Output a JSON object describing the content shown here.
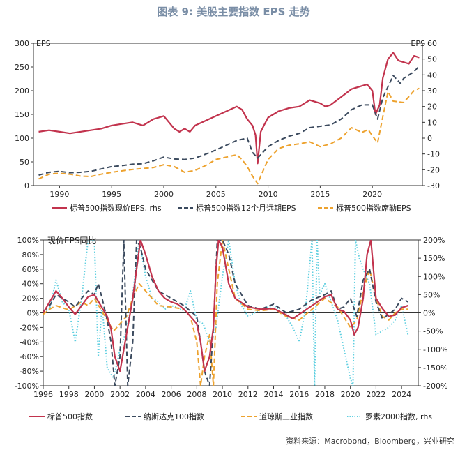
{
  "figure": {
    "title": "图表 9:  美股主要指数 EPS 走势",
    "source": "资料来源：Macrobond，Bloomberg，兴业研究"
  },
  "colors": {
    "sp_red": "#c2334d",
    "dark_blue": "#3b4a5e",
    "orange": "#eda22e",
    "cyan": "#5fcfe0",
    "title": "#7a8ea6"
  },
  "chart_data": [
    {
      "type": "line",
      "ylabel_left": "EPS",
      "ylabel_right": "EPS",
      "ylim_left": [
        0,
        300
      ],
      "ylim_right": [
        -30,
        60
      ],
      "yticks_left": [
        "0",
        "50",
        "100",
        "150",
        "200",
        "250",
        "300"
      ],
      "yticks_right": [
        "-30",
        "-20",
        "-10",
        "0",
        "10",
        "20",
        "30",
        "40",
        "50",
        "60"
      ],
      "xlim": [
        1987.5,
        2024.8
      ],
      "xticks": [
        "1990",
        "1995",
        "2000",
        "2005",
        "2010",
        "2015",
        "2020"
      ],
      "legend_position": "bottom",
      "series": [
        {
          "name": "标普500指数现价EPS, rhs",
          "axis": "right",
          "color": "#c2334d",
          "style": "solid",
          "x": [
            1988,
            1989,
            1990,
            1991,
            1992,
            1993,
            1994,
            1995,
            1996,
            1997,
            1998,
            1999,
            2000,
            2001,
            2001.5,
            2002,
            2002.5,
            2003,
            2004,
            2005,
            2006,
            2007,
            2007.5,
            2008,
            2008.5,
            2008.8,
            2009,
            2009.3,
            2009.6,
            2010,
            2011,
            2012,
            2013,
            2014,
            2015,
            2015.5,
            2016,
            2017,
            2018,
            2019,
            2019.5,
            2020,
            2020.3,
            2020.7,
            2021,
            2021.5,
            2022,
            2022.5,
            2023,
            2023.5,
            2024,
            2024.5
          ],
          "values": [
            4,
            5,
            4,
            3,
            4,
            5,
            6,
            8,
            9,
            10,
            8,
            12,
            14,
            6,
            4,
            6,
            4,
            8,
            11,
            14,
            17,
            20,
            18,
            12,
            8,
            2,
            -16,
            4,
            8,
            13,
            17,
            19,
            20,
            24,
            22,
            20,
            21,
            26,
            31,
            33,
            34,
            30,
            15,
            21,
            38,
            50,
            54,
            49,
            48,
            47,
            52,
            51
          ]
        },
        {
          "name": "标普500指数12个月远期EPS",
          "axis": "left",
          "color": "#3b4a5e",
          "style": "dashed",
          "x": [
            1988,
            1989,
            1990,
            1991,
            1992,
            1993,
            1994,
            1995,
            1996,
            1997,
            1998,
            1999,
            2000,
            2001,
            2002,
            2003,
            2004,
            2005,
            2006,
            2007,
            2008,
            2008.5,
            2009,
            2009.5,
            2010,
            2011,
            2012,
            2013,
            2014,
            2015,
            2016,
            2017,
            2018,
            2019,
            2020,
            2020.5,
            2021,
            2022,
            2022.7,
            2023,
            2024,
            2024.5
          ],
          "values": [
            22,
            28,
            30,
            27,
            28,
            30,
            35,
            40,
            42,
            45,
            46,
            52,
            60,
            56,
            55,
            58,
            66,
            75,
            85,
            95,
            100,
            70,
            58,
            70,
            82,
            95,
            104,
            110,
            122,
            125,
            128,
            140,
            160,
            170,
            170,
            140,
            185,
            232,
            215,
            226,
            240,
            252
          ]
        },
        {
          "name": "标普500指数席勒EPS",
          "axis": "left",
          "color": "#eda22e",
          "style": "dashed",
          "x": [
            1988,
            1989,
            1990,
            1991,
            1992,
            1993,
            1994,
            1995,
            1996,
            1997,
            1998,
            1999,
            2000,
            2001,
            2002,
            2003,
            2004,
            2005,
            2006,
            2007,
            2007.5,
            2008,
            2008.5,
            2009,
            2009.5,
            2010,
            2011,
            2012,
            2013,
            2014,
            2015,
            2016,
            2017,
            2018,
            2019,
            2019.6,
            2020,
            2020.5,
            2021,
            2021.5,
            2022,
            2023,
            2024,
            2024.5
          ],
          "values": [
            14,
            24,
            26,
            24,
            20,
            19,
            24,
            28,
            31,
            34,
            36,
            38,
            44,
            40,
            28,
            32,
            42,
            55,
            60,
            65,
            55,
            40,
            20,
            4,
            30,
            55,
            78,
            85,
            88,
            92,
            82,
            88,
            100,
            122,
            112,
            118,
            105,
            90,
            145,
            198,
            178,
            175,
            200,
            205
          ]
        }
      ]
    },
    {
      "type": "line",
      "title": "现价EPS同比",
      "ylim_left": [
        -100,
        100
      ],
      "ylim_right": [
        -200,
        200
      ],
      "yticks_left": [
        "-100%",
        "-80%",
        "-60%",
        "-40%",
        "-20%",
        "0%",
        "20%",
        "40%",
        "60%",
        "80%",
        "100%"
      ],
      "yticks_right": [
        "-200%",
        "-150%",
        "-100%",
        "-50%",
        "0%",
        "50%",
        "100%",
        "150%",
        "200%"
      ],
      "xlim": [
        1996,
        2025.3
      ],
      "xticks": [
        "1996",
        "1998",
        "2000",
        "2002",
        "2004",
        "2006",
        "2008",
        "2010",
        "2012",
        "2014",
        "2016",
        "2018",
        "2020",
        "2022",
        "2024"
      ],
      "legend_position": "bottom",
      "series": [
        {
          "name": "标普500指数",
          "axis": "left",
          "color": "#c2334d",
          "style": "solid",
          "x": [
            1996,
            1996.5,
            1997,
            1997.5,
            1998,
            1998.5,
            1999,
            1999.5,
            2000,
            2000.5,
            2001,
            2001.3,
            2001.6,
            2002,
            2002.3,
            2002.6,
            2003,
            2003.3,
            2003.6,
            2004,
            2004.5,
            2005,
            2005.5,
            2006,
            2006.5,
            2007,
            2007.5,
            2008,
            2008.3,
            2008.6,
            2009,
            2009.3,
            2009.5,
            2009.7,
            2010,
            2010.5,
            2011,
            2012,
            2013,
            2014,
            2015,
            2015.5,
            2016,
            2017,
            2018,
            2018.5,
            2019,
            2019.5,
            2020,
            2020.3,
            2020.6,
            2021,
            2021.3,
            2021.6,
            2022,
            2022.5,
            2023,
            2023.5,
            2024,
            2024.5
          ],
          "values": [
            0,
            15,
            30,
            20,
            8,
            -2,
            10,
            22,
            25,
            10,
            -5,
            -22,
            -60,
            -80,
            -50,
            -20,
            20,
            60,
            100,
            80,
            50,
            30,
            20,
            15,
            12,
            5,
            -5,
            -15,
            -40,
            -80,
            -60,
            -20,
            60,
            100,
            90,
            40,
            20,
            8,
            5,
            6,
            -3,
            -8,
            -2,
            10,
            22,
            25,
            5,
            2,
            -10,
            -30,
            -20,
            20,
            80,
            100,
            20,
            6,
            -5,
            -3,
            7,
            10
          ]
        },
        {
          "name": "纳斯达克100指数",
          "axis": "left",
          "color": "#3b4a5e",
          "style": "dashed",
          "x": [
            1996,
            1996.5,
            1997,
            1998,
            1998.5,
            1999,
            1999.5,
            2000,
            2000.3,
            2000.6,
            2001,
            2001.3,
            2001.6,
            2002,
            2002.3,
            2002.6,
            2003,
            2003.3,
            2003.6,
            2004,
            2005,
            2006,
            2007,
            2008,
            2008.3,
            2008.6,
            2009,
            2009.3,
            2009.6,
            2010,
            2010.5,
            2011,
            2012,
            2013,
            2014,
            2015,
            2016,
            2017,
            2018,
            2018.5,
            2019,
            2019.5,
            2020,
            2020.5,
            2021,
            2021.5,
            2022,
            2022.5,
            2023,
            2023.5,
            2024,
            2024.5
          ],
          "values": [
            2,
            10,
            25,
            15,
            8,
            20,
            30,
            25,
            40,
            20,
            -10,
            -40,
            -100,
            -60,
            100,
            -100,
            -40,
            100,
            90,
            60,
            30,
            20,
            10,
            -5,
            -40,
            -80,
            -100,
            -20,
            100,
            100,
            80,
            40,
            10,
            5,
            12,
            0,
            5,
            18,
            25,
            30,
            5,
            8,
            20,
            -5,
            45,
            60,
            15,
            -8,
            -2,
            5,
            20,
            15
          ]
        },
        {
          "name": "道琼斯工业指数",
          "axis": "left",
          "color": "#eda22e",
          "style": "dashed",
          "x": [
            1996,
            1996.5,
            1997,
            1998,
            1999,
            1999.5,
            2000,
            2000.5,
            2001,
            2001.5,
            2002,
            2002.5,
            2003,
            2003.5,
            2004,
            2004.5,
            2005,
            2006,
            2007,
            2007.5,
            2008,
            2008.3,
            2008.6,
            2009,
            2009.3,
            2009.6,
            2010,
            2010.5,
            2011,
            2012,
            2013,
            2014,
            2015,
            2016,
            2017,
            2018,
            2019,
            2020,
            2020.5,
            2021,
            2021.5,
            2022,
            2022.5,
            2023,
            2023.5,
            2024,
            2024.5
          ],
          "values": [
            -2,
            5,
            10,
            4,
            15,
            10,
            20,
            5,
            -10,
            -25,
            -15,
            -5,
            20,
            40,
            30,
            20,
            10,
            8,
            5,
            -5,
            -40,
            -100,
            -60,
            -30,
            -100,
            40,
            100,
            60,
            20,
            5,
            3,
            5,
            -5,
            -10,
            5,
            20,
            8,
            -20,
            -10,
            30,
            60,
            20,
            -5,
            -10,
            0,
            5,
            5
          ]
        },
        {
          "name": "罗素2000指数, rhs",
          "axis": "right",
          "color": "#5fcfe0",
          "style": "dotted",
          "x": [
            1996,
            1996.5,
            1997,
            1997.5,
            1998,
            1998.5,
            1999,
            1999.5,
            2000,
            2000.3,
            2000.6,
            2001,
            2001.5,
            2002,
            2002.5,
            2003,
            2003.5,
            2004,
            2004.5,
            2005,
            2005.5,
            2006,
            2006.5,
            2007,
            2007.5,
            2008,
            2008.5,
            2009,
            2009.5,
            2010,
            2010.5,
            2011,
            2011.5,
            2012,
            2013,
            2014,
            2015,
            2015.5,
            2016,
            2016.5,
            2017,
            2017.2,
            2017.4,
            2017.6,
            2018,
            2018.5,
            2019,
            2019.5,
            2020,
            2020.2,
            2020.4,
            2020.7,
            2021,
            2021.5,
            2022,
            2022.5,
            2023,
            2023.5,
            2024,
            2024.5
          ],
          "values": [
            5,
            10,
            90,
            30,
            10,
            -80,
            40,
            200,
            200,
            -120,
            20,
            -150,
            -180,
            -100,
            -50,
            50,
            200,
            100,
            40,
            30,
            10,
            20,
            15,
            5,
            60,
            -20,
            -30,
            -80,
            -40,
            100,
            200,
            80,
            20,
            -10,
            10,
            20,
            -10,
            -40,
            -80,
            10,
            200,
            -200,
            200,
            50,
            80,
            30,
            -20,
            -100,
            -180,
            -200,
            200,
            150,
            120,
            80,
            -60,
            -50,
            -40,
            -20,
            20,
            -60
          ]
        }
      ]
    }
  ]
}
